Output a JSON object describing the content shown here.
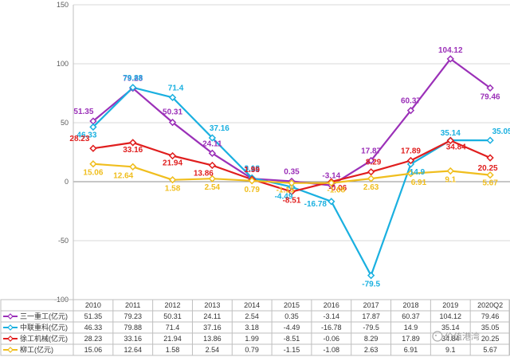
{
  "chart_data": {
    "type": "line",
    "title": "",
    "xlabel": "",
    "ylabel": "",
    "ylim": [
      -100,
      150
    ],
    "yticks": [
      -100,
      -50,
      0,
      50,
      100,
      150
    ],
    "grid": true,
    "legend": "data-table-bottom",
    "categories": [
      "2010",
      "2011",
      "2012",
      "2013",
      "2014",
      "2015",
      "2016",
      "2017",
      "2018",
      "2019",
      "2020Q2"
    ],
    "series": [
      {
        "name": "三一重工(亿元)",
        "color": "#9b30b8",
        "marker": "diamond",
        "values": [
          51.35,
          79.23,
          50.31,
          24.11,
          2.54,
          0.35,
          -3.14,
          17.87,
          60.37,
          104.12,
          79.46
        ],
        "labels": [
          "51.35",
          "79.23",
          "50.31",
          "24.11",
          "2.54",
          "0.35",
          "-3.14",
          "17.87",
          "60.37",
          "104.12",
          "79.46"
        ]
      },
      {
        "name": "中联重科(亿元)",
        "color": "#1ab0e0",
        "marker": "diamond",
        "values": [
          46.33,
          79.88,
          71.4,
          37.16,
          3.18,
          -4.49,
          -16.78,
          -79.5,
          14.9,
          35.14,
          35.05
        ],
        "labels": [
          "46.33",
          "79.88",
          "71.4",
          "37.16",
          "3.18",
          "-4.49",
          "-16.78",
          "-79.5",
          "14.9",
          "35.14",
          "35.05"
        ]
      },
      {
        "name": "徐工机械(亿元)",
        "color": "#e01e1e",
        "marker": "diamond",
        "values": [
          28.23,
          33.16,
          21.94,
          13.86,
          1.99,
          -8.51,
          -0.06,
          8.29,
          17.89,
          34.84,
          20.25
        ],
        "labels": [
          "28.23",
          "33.16",
          "21.94",
          "13.86",
          "1.99",
          "-8.51",
          "-0.06",
          "8.29",
          "17.89",
          "34.84",
          "20.25"
        ]
      },
      {
        "name": "柳工(亿元)",
        "color": "#f0be1e",
        "marker": "diamond",
        "values": [
          15.06,
          12.64,
          1.58,
          2.54,
          0.79,
          -1.15,
          -1.08,
          2.63,
          6.91,
          9.1,
          5.67
        ],
        "labels": [
          "15.06",
          "12.64",
          "1.58",
          "2.54",
          "0.79",
          "-1.15",
          "-1.08",
          "2.63",
          "6.91",
          "9.1",
          "5.67"
        ]
      }
    ],
    "table_rows": [
      [
        "51.35",
        "79.23",
        "50.31",
        "24.11",
        "2.54",
        "0.35",
        "-3.14",
        "17.87",
        "60.37",
        "104.12",
        "79.46"
      ],
      [
        "46.33",
        "79.88",
        "71.4",
        "37.16",
        "3.18",
        "-4.49",
        "-16.78",
        "-79.5",
        "14.9",
        "35.14",
        "35.05"
      ],
      [
        "28.23",
        "33.16",
        "21.94",
        "13.86",
        "1.99",
        "-8.51",
        "-0.06",
        "8.29",
        "17.89",
        "34.84",
        "20.25"
      ],
      [
        "15.06",
        "12.64",
        "1.58",
        "2.54",
        "0.79",
        "-1.15",
        "-1.08",
        "2.63",
        "6.91",
        "9.1",
        "5.67"
      ]
    ]
  },
  "watermark": "价值港湾"
}
